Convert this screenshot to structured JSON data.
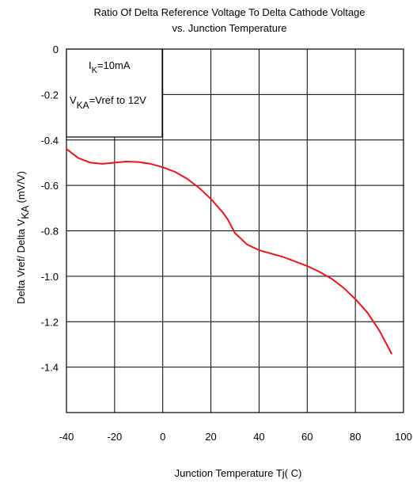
{
  "chart_data": {
    "type": "line",
    "title": "Ratio Of Delta Reference Voltage To Delta Cathode Voltage",
    "subtitle": "vs. Junction Temperature",
    "xlabel": "Junction Temperature Tj(  C)",
    "ylabel": "Delta Vref/ Delta V KA (mV/V)",
    "ylabel_main": "Delta Vref/ Delta V",
    "ylabel_sub": "KA",
    "ylabel_unit": " (mV/V)",
    "xlim": [
      -40,
      100
    ],
    "ylim": [
      -1.6,
      0
    ],
    "x_ticks": [
      -40,
      -20,
      0,
      20,
      40,
      60,
      80,
      100
    ],
    "y_ticks": [
      0,
      -0.2,
      -0.4,
      -0.6,
      -0.8,
      -1.0,
      -1.2,
      -1.4
    ],
    "x_tick_labels": [
      "-40",
      "-20",
      "0",
      "20",
      "40",
      "60",
      "80",
      "100"
    ],
    "y_tick_labels": [
      "0",
      "-0.2",
      "-0.4",
      "-0.6",
      "-0.8",
      "-1.0",
      "-1.2",
      "-1.4"
    ],
    "grid": true,
    "conditions": {
      "line1": {
        "prefix": "I",
        "sub": "K",
        "suffix": "=10mA"
      },
      "line2": {
        "prefix": "V",
        "sub": "KA",
        "suffix": "=Vref to 12V"
      }
    },
    "series": [
      {
        "color": "#e8141c",
        "x": [
          -40,
          -35,
          -30,
          -25,
          -20,
          -15,
          -10,
          -5,
          0,
          5,
          10,
          15,
          20,
          25,
          27,
          30,
          35,
          40,
          45,
          50,
          55,
          60,
          65,
          70,
          75,
          80,
          85,
          90,
          95
        ],
        "y": [
          -0.44,
          -0.48,
          -0.5,
          -0.505,
          -0.5,
          -0.495,
          -0.497,
          -0.505,
          -0.52,
          -0.54,
          -0.57,
          -0.61,
          -0.66,
          -0.72,
          -0.75,
          -0.81,
          -0.86,
          -0.885,
          -0.9,
          -0.915,
          -0.935,
          -0.955,
          -0.98,
          -1.01,
          -1.05,
          -1.1,
          -1.16,
          -1.24,
          -1.34
        ]
      }
    ]
  }
}
